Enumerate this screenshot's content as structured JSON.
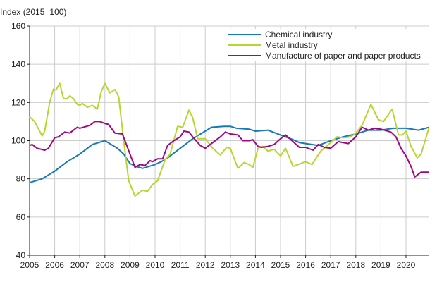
{
  "chart_data": {
    "type": "line",
    "title": "",
    "ylabel": "Index (2015=100)",
    "xlabel": "",
    "ylim": [
      40,
      160
    ],
    "yticks": [
      40,
      60,
      80,
      100,
      120,
      140,
      160
    ],
    "xlim": [
      2005,
      2020.92
    ],
    "xticks": [
      "2005",
      "2006",
      "2007",
      "2008",
      "2009",
      "2010",
      "2011",
      "2012",
      "2013",
      "2014",
      "2015",
      "2016",
      "2017",
      "2018",
      "2019",
      "2020"
    ],
    "grid": true,
    "legend_position": "top-right",
    "series": [
      {
        "name": "Chemical industry",
        "color": "#1779b6",
        "x": [
          2005,
          2005.5,
          2006,
          2006.5,
          2007,
          2007.5,
          2008,
          2008.5,
          2008.75,
          2009,
          2009.25,
          2009.5,
          2010,
          2010.25,
          2010.5,
          2011,
          2011.5,
          2012,
          2012.25,
          2012.75,
          2013,
          2013.25,
          2013.75,
          2014,
          2014.5,
          2015,
          2015.5,
          2015.75,
          2016,
          2016.5,
          2017,
          2017.5,
          2018,
          2018.5,
          2019,
          2019.5,
          2020,
          2020.5,
          2020.92
        ],
        "y": [
          78,
          80,
          84,
          89,
          93,
          98,
          100,
          96,
          93,
          88,
          86.5,
          85.5,
          87.5,
          89,
          91,
          96,
          101,
          105,
          107,
          107.5,
          107.5,
          106.5,
          106,
          105,
          105.5,
          103,
          100.5,
          99,
          98.5,
          97.5,
          100,
          102,
          103.5,
          105.5,
          105.5,
          106.5,
          106.5,
          105.5,
          107
        ]
      },
      {
        "name": "Metal industry",
        "color": "#b9d532",
        "x": [
          2005,
          2005.2,
          2005.5,
          2005.6,
          2005.8,
          2005.95,
          2006.05,
          2006.2,
          2006.35,
          2006.5,
          2006.6,
          2006.75,
          2006.9,
          2007,
          2007.1,
          2007.3,
          2007.5,
          2007.7,
          2007.85,
          2008,
          2008.2,
          2008.4,
          2008.55,
          2008.75,
          2008.95,
          2009.2,
          2009.5,
          2009.7,
          2009.9,
          2010.1,
          2010.4,
          2010.6,
          2010.9,
          2011.1,
          2011.35,
          2011.5,
          2011.7,
          2012,
          2012.3,
          2012.6,
          2012.85,
          2013,
          2013.3,
          2013.55,
          2013.75,
          2013.9,
          2014.1,
          2014.3,
          2014.5,
          2014.75,
          2015,
          2015.2,
          2015.5,
          2016,
          2016.25,
          2016.6,
          2017,
          2017.25,
          2017.5,
          2017.8,
          2018,
          2018.25,
          2018.6,
          2018.9,
          2019.1,
          2019.45,
          2019.7,
          2019.85,
          2020,
          2020.2,
          2020.45,
          2020.6,
          2020.92
        ],
        "y": [
          112.5,
          110,
          102.5,
          105,
          120,
          127,
          126.5,
          130,
          122,
          122,
          123.5,
          122,
          119,
          118.5,
          119.5,
          117.5,
          118.5,
          116.5,
          125.5,
          130,
          125,
          126.8,
          123,
          100,
          79,
          71,
          74,
          73.5,
          77,
          79,
          90,
          93,
          107.5,
          107,
          116,
          112,
          101,
          101,
          96,
          92.5,
          96.5,
          96,
          85.5,
          88.5,
          87.5,
          86,
          96,
          97,
          94.5,
          95.5,
          92,
          96,
          86.5,
          89,
          87.5,
          94.5,
          99,
          102,
          101.5,
          102,
          104,
          108,
          119,
          111,
          110,
          116.5,
          103,
          103,
          105,
          97,
          91,
          93,
          107
        ]
      },
      {
        "name": "Manufacture of paper and paper products",
        "color": "#a1077f",
        "x": [
          2005,
          2005.1,
          2005.3,
          2005.6,
          2005.75,
          2006,
          2006.15,
          2006.4,
          2006.6,
          2006.9,
          2007,
          2007.4,
          2007.6,
          2007.8,
          2008,
          2008.15,
          2008.4,
          2008.7,
          2009,
          2009.2,
          2009.4,
          2009.6,
          2009.8,
          2009.9,
          2010.1,
          2010.3,
          2010.5,
          2010.75,
          2011,
          2011.15,
          2011.35,
          2011.5,
          2011.8,
          2012,
          2012.3,
          2012.6,
          2012.8,
          2013,
          2013.3,
          2013.5,
          2013.75,
          2013.9,
          2014.1,
          2014.25,
          2014.5,
          2014.75,
          2015,
          2015.2,
          2015.5,
          2015.75,
          2016,
          2016.3,
          2016.5,
          2016.75,
          2017,
          2017.3,
          2017.7,
          2018,
          2018.25,
          2018.5,
          2018.75,
          2019,
          2019.4,
          2019.6,
          2019.8,
          2020,
          2020.2,
          2020.35,
          2020.6,
          2020.92
        ],
        "y": [
          97.5,
          98,
          96,
          95,
          96,
          101.5,
          102,
          104.5,
          104,
          107,
          106.5,
          108,
          110,
          110,
          109,
          108.5,
          104,
          103.5,
          93,
          86,
          87.5,
          87,
          89.5,
          89,
          90.5,
          90.5,
          97.5,
          100,
          102,
          105,
          104.5,
          102,
          97.5,
          96,
          99,
          102,
          104.5,
          103.5,
          103,
          100,
          100,
          100.5,
          97,
          96.5,
          97,
          98,
          101,
          103,
          99.5,
          96.5,
          96.5,
          95,
          98,
          96.5,
          96,
          99.5,
          98.5,
          102,
          107,
          105.5,
          106.5,
          106,
          104.5,
          102,
          96,
          92,
          86.5,
          81,
          83.5,
          83.5
        ]
      }
    ]
  }
}
